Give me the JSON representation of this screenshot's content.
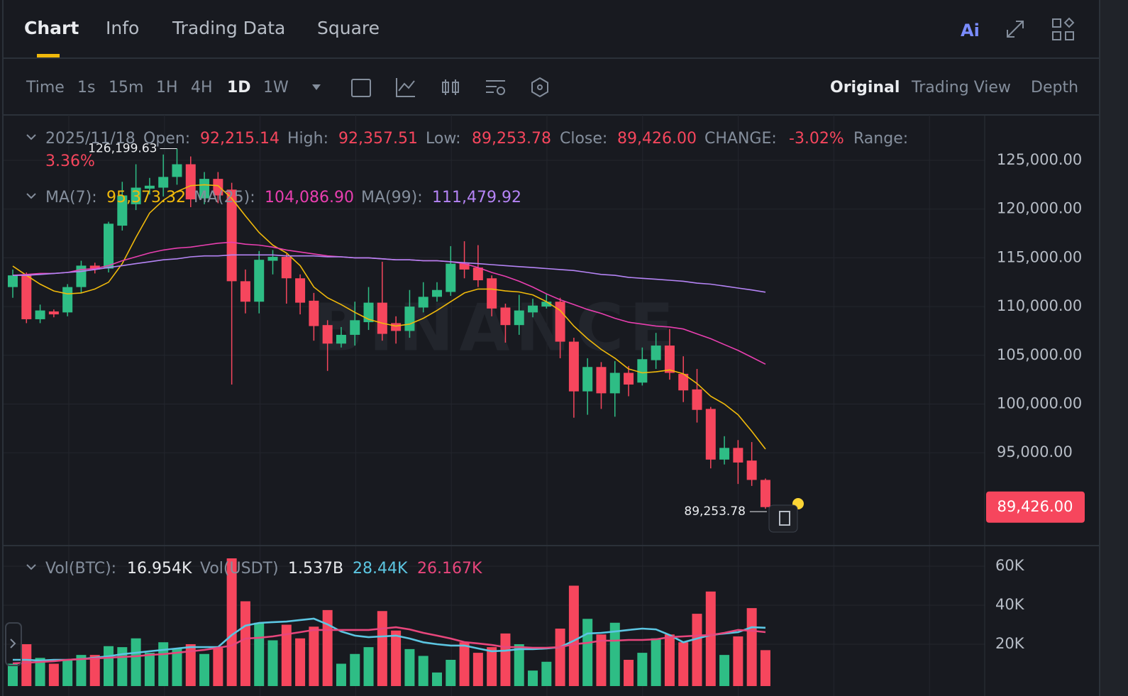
{
  "tabs": [
    "Chart",
    "Info",
    "Trading Data",
    "Square"
  ],
  "ai_badge": "Ai",
  "toolbar": {
    "intervals": [
      "Time",
      "1s",
      "15m",
      "1H",
      "4H",
      "1D",
      "1W"
    ],
    "views": [
      "Original",
      "Trading View",
      "Depth"
    ]
  },
  "info": {
    "date": "2025/11/18",
    "fields": [
      {
        "label": "Open:",
        "value": "92,215.14"
      },
      {
        "label": "High:",
        "value": "92,357.51"
      },
      {
        "label": "Low:",
        "value": "89,253.78"
      },
      {
        "label": "Close:",
        "value": "89,426.00"
      },
      {
        "label": "CHANGE:",
        "value": "-3.02%"
      },
      {
        "label": "Range:",
        "value": "3.36%"
      }
    ]
  },
  "watermark": "BINANCE",
  "chart_data": {
    "type": "candlestick",
    "up_color": "#2ebd85",
    "down_color": "#f6465d",
    "grid": true,
    "ylim": [
      85550,
      129660
    ],
    "yticks": [
      {
        "value": 95000,
        "label": "95,000.00"
      },
      {
        "value": 100000,
        "label": "100,000.00"
      },
      {
        "value": 105000,
        "label": "105,000.00"
      },
      {
        "value": 110000,
        "label": "110,000.00"
      },
      {
        "value": 115000,
        "label": "115,000.00"
      },
      {
        "value": 120000,
        "label": "120,000.00"
      },
      {
        "value": 125000,
        "label": "125,000.00"
      }
    ],
    "open": [
      112000,
      113300,
      108700,
      109500,
      109400,
      112000,
      114200,
      113900,
      118300,
      120500,
      122100,
      122200,
      123300,
      124600,
      121100,
      123100,
      122000,
      112600,
      110500,
      114700,
      115100,
      112900,
      110600,
      108100,
      106200,
      107100,
      108400,
      110400,
      108300,
      107500,
      109900,
      111000,
      111500,
      114400,
      114000,
      112900,
      109900,
      108100,
      109400,
      110000,
      110500,
      106400,
      101300,
      103800,
      101100,
      103200,
      102200,
      104500,
      106000,
      103100,
      101500,
      99500,
      94300,
      95500,
      94200,
      92215.14
    ],
    "high": [
      113800,
      113500,
      110200,
      109700,
      112300,
      114700,
      114500,
      118700,
      122800,
      124600,
      123200,
      125600,
      126199.63,
      125400,
      123800,
      123800,
      122700,
      113800,
      115700,
      115800,
      115400,
      113300,
      111400,
      108600,
      107900,
      110500,
      112000,
      114600,
      109000,
      111700,
      112500,
      112500,
      116200,
      116700,
      116300,
      113200,
      110300,
      111200,
      110800,
      111300,
      110900,
      106800,
      104700,
      104300,
      104400,
      103900,
      105800,
      107300,
      107700,
      104900,
      103600,
      99700,
      96700,
      96300,
      96100,
      92357.51
    ],
    "low": [
      110900,
      108300,
      108300,
      108900,
      109000,
      111400,
      113400,
      113500,
      117800,
      119900,
      121500,
      121300,
      122500,
      120200,
      120500,
      120600,
      102000,
      109300,
      109300,
      113300,
      110300,
      109200,
      106500,
      103400,
      105800,
      106000,
      107600,
      106500,
      106200,
      106800,
      109400,
      110500,
      111100,
      112900,
      112000,
      109000,
      106300,
      107100,
      108900,
      109800,
      104700,
      98600,
      98900,
      99500,
      98700,
      100800,
      101900,
      103600,
      102500,
      100200,
      98100,
      93400,
      93800,
      91800,
      91600,
      89253.78
    ],
    "close": [
      113200,
      108700,
      109600,
      109200,
      112000,
      114200,
      113800,
      118500,
      121400,
      122200,
      122400,
      123300,
      124600,
      121000,
      123100,
      121400,
      112600,
      110500,
      114800,
      115100,
      112900,
      110400,
      108000,
      106200,
      107100,
      108600,
      110400,
      107200,
      107500,
      110000,
      111000,
      111700,
      114400,
      113800,
      112700,
      109800,
      108100,
      109600,
      110100,
      110500,
      106400,
      101300,
      103800,
      101100,
      103200,
      102000,
      104600,
      106000,
      103200,
      101400,
      99400,
      94300,
      95500,
      94000,
      92215.14,
      89426
    ],
    "high_label": "126,199.63",
    "low_label": "89,253.78",
    "last_label": "89,426.00",
    "ma": [
      {
        "name": "MA(7):",
        "label": "95,373.32",
        "color": "#f0b90b",
        "values": [
          114150,
          113200,
          112300,
          111600,
          111300,
          111400,
          111800,
          112500,
          114400,
          117100,
          119600,
          120900,
          121800,
          122400,
          122500,
          122400,
          121100,
          119300,
          117600,
          116300,
          115500,
          114200,
          112000,
          110900,
          110200,
          109400,
          108700,
          108300,
          108000,
          108200,
          108800,
          109600,
          110500,
          111400,
          111800,
          111800,
          111600,
          111500,
          111200,
          110500,
          109600,
          108000,
          106700,
          105600,
          104700,
          103600,
          103200,
          103300,
          103500,
          103100,
          102100,
          100800,
          100000,
          98900,
          97200,
          95373.32
        ]
      },
      {
        "name": "MA(25):",
        "label": "104,086.90",
        "color": "#e93fb0",
        "values": [
          113200,
          113300,
          113400,
          113400,
          113500,
          113800,
          113900,
          114200,
          114700,
          115100,
          115500,
          115800,
          116000,
          116100,
          116300,
          116500,
          116600,
          116400,
          116300,
          116100,
          115800,
          115600,
          115400,
          115200,
          115100,
          115000,
          115000,
          114900,
          114800,
          114800,
          114700,
          114700,
          114600,
          114400,
          114000,
          113500,
          113100,
          112600,
          112000,
          111300,
          110700,
          110200,
          109700,
          109300,
          108800,
          108400,
          108200,
          108000,
          107900,
          107700,
          107200,
          106700,
          106100,
          105500,
          104800,
          104086.9
        ]
      },
      {
        "name": "MA(99):",
        "label": "111,479.92",
        "color": "#b584f5",
        "values": [
          113200,
          113200,
          113300,
          113400,
          113500,
          113600,
          113800,
          114000,
          114200,
          114400,
          114600,
          114800,
          114900,
          115100,
          115200,
          115200,
          115300,
          115300,
          115300,
          115300,
          115200,
          115200,
          115200,
          115100,
          115100,
          115000,
          115000,
          114900,
          114800,
          114800,
          114700,
          114700,
          114600,
          114500,
          114400,
          114300,
          114200,
          114100,
          114000,
          113900,
          113800,
          113700,
          113500,
          113300,
          113200,
          113000,
          112900,
          112800,
          112700,
          112600,
          112400,
          112300,
          112100,
          111900,
          111700,
          111479.92
        ]
      }
    ],
    "volume": {
      "type": "bar",
      "name": "Vol(BTC):",
      "label": "16.954K",
      "usdt_name": "Vol(USDT)",
      "usdt_label": "1.537B",
      "ylim": [
        0,
        70
      ],
      "yticks": [
        {
          "value": 20,
          "label": "20K"
        },
        {
          "value": 40,
          "label": "40K"
        },
        {
          "value": 60,
          "label": "60K"
        }
      ],
      "values": [
        10,
        20,
        13,
        10,
        12,
        14.5,
        14.5,
        19,
        18.5,
        23,
        15.6,
        21,
        18,
        20,
        15,
        18,
        64,
        42,
        31,
        22,
        30,
        23,
        29,
        37.5,
        10,
        15,
        18.5,
        37,
        27,
        17.5,
        14,
        5.5,
        12,
        21,
        15.6,
        18.5,
        25.5,
        20,
        6.5,
        11,
        28,
        50,
        33,
        25,
        31,
        12,
        15.6,
        23,
        25,
        21,
        35.6,
        47,
        14.5,
        24,
        38.5,
        16.954
      ],
      "ma": [
        {
          "label": "28.44K",
          "color": "#5cc6e2",
          "values": [
            12,
            12,
            11.6,
            12,
            12,
            12.4,
            13.1,
            13.8,
            14.9,
            15.6,
            16.4,
            17.1,
            17.8,
            18.5,
            18.5,
            18.5,
            24.7,
            29.5,
            30.9,
            31.3,
            31.6,
            32.4,
            33.1,
            30.2,
            26.5,
            24.4,
            23.6,
            24,
            24.4,
            22.9,
            21,
            20,
            19.3,
            19.3,
            17.8,
            16.4,
            16.7,
            17.5,
            17.5,
            17.8,
            18.5,
            21.8,
            25.5,
            25.8,
            26.5,
            27.3,
            28,
            27.6,
            24.7,
            21,
            22.9,
            24.7,
            25.5,
            26.2,
            28.7,
            28.44
          ]
        },
        {
          "label": "26.167K",
          "color": "#e8467c",
          "values": [
            10.2,
            10.5,
            10.9,
            11.3,
            12,
            12.4,
            12.7,
            13.1,
            13.5,
            13.8,
            14.5,
            14.9,
            15.6,
            16.4,
            17.1,
            18.2,
            19.3,
            22.9,
            23.3,
            24,
            25.1,
            26.2,
            27.3,
            27.3,
            27.3,
            27.3,
            27.3,
            28,
            28.7,
            27.6,
            25.8,
            24.4,
            22.9,
            21.1,
            20.4,
            19.6,
            18.5,
            18.5,
            18.2,
            18.2,
            18.5,
            20,
            20.7,
            21.8,
            21.8,
            22.2,
            22.2,
            22.5,
            23.6,
            24,
            24.4,
            24.7,
            25.8,
            27.3,
            26.9,
            26.167
          ]
        }
      ]
    }
  }
}
